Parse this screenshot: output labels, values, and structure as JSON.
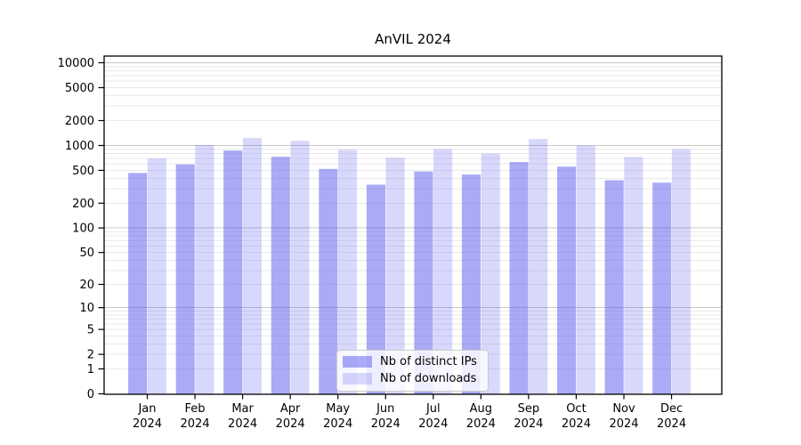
{
  "figure": {
    "title": "AnVIL 2024"
  },
  "chart_data": {
    "type": "bar",
    "title": "AnVIL 2024",
    "categories": [
      "Jan 2024",
      "Feb 2024",
      "Mar 2024",
      "Apr 2024",
      "May 2024",
      "Jun 2024",
      "Jul 2024",
      "Aug 2024",
      "Sep 2024",
      "Oct 2024",
      "Nov 2024",
      "Dec 2024"
    ],
    "series": [
      {
        "name": "Nb of distinct IPs",
        "fill": "rgba(85,85,240,0.5)",
        "values": [
          465,
          590,
          870,
          730,
          520,
          335,
          485,
          445,
          630,
          555,
          380,
          355
        ]
      },
      {
        "name": "Nb of downloads",
        "fill": "rgba(85,85,240,0.23)",
        "values": [
          700,
          1015,
          1230,
          1140,
          890,
          710,
          905,
          800,
          1200,
          1000,
          725,
          900
        ]
      }
    ],
    "xlabel": "",
    "ylabel": "",
    "y_scale": "symlog (log10 of 1+value)",
    "y_ticks": [
      0,
      1,
      2,
      5,
      10,
      20,
      50,
      100,
      200,
      500,
      1000,
      2000,
      5000,
      10000
    ],
    "y_major_gridlines": [
      10,
      100,
      1000,
      10000
    ],
    "ylim": [
      0,
      12000
    ],
    "grid": true,
    "legend_position": "lower center",
    "colors": {
      "grid_minor": "#eaeaea",
      "grid_major": "#c8c8c8",
      "axis": "#000000",
      "text": "#000000"
    }
  }
}
